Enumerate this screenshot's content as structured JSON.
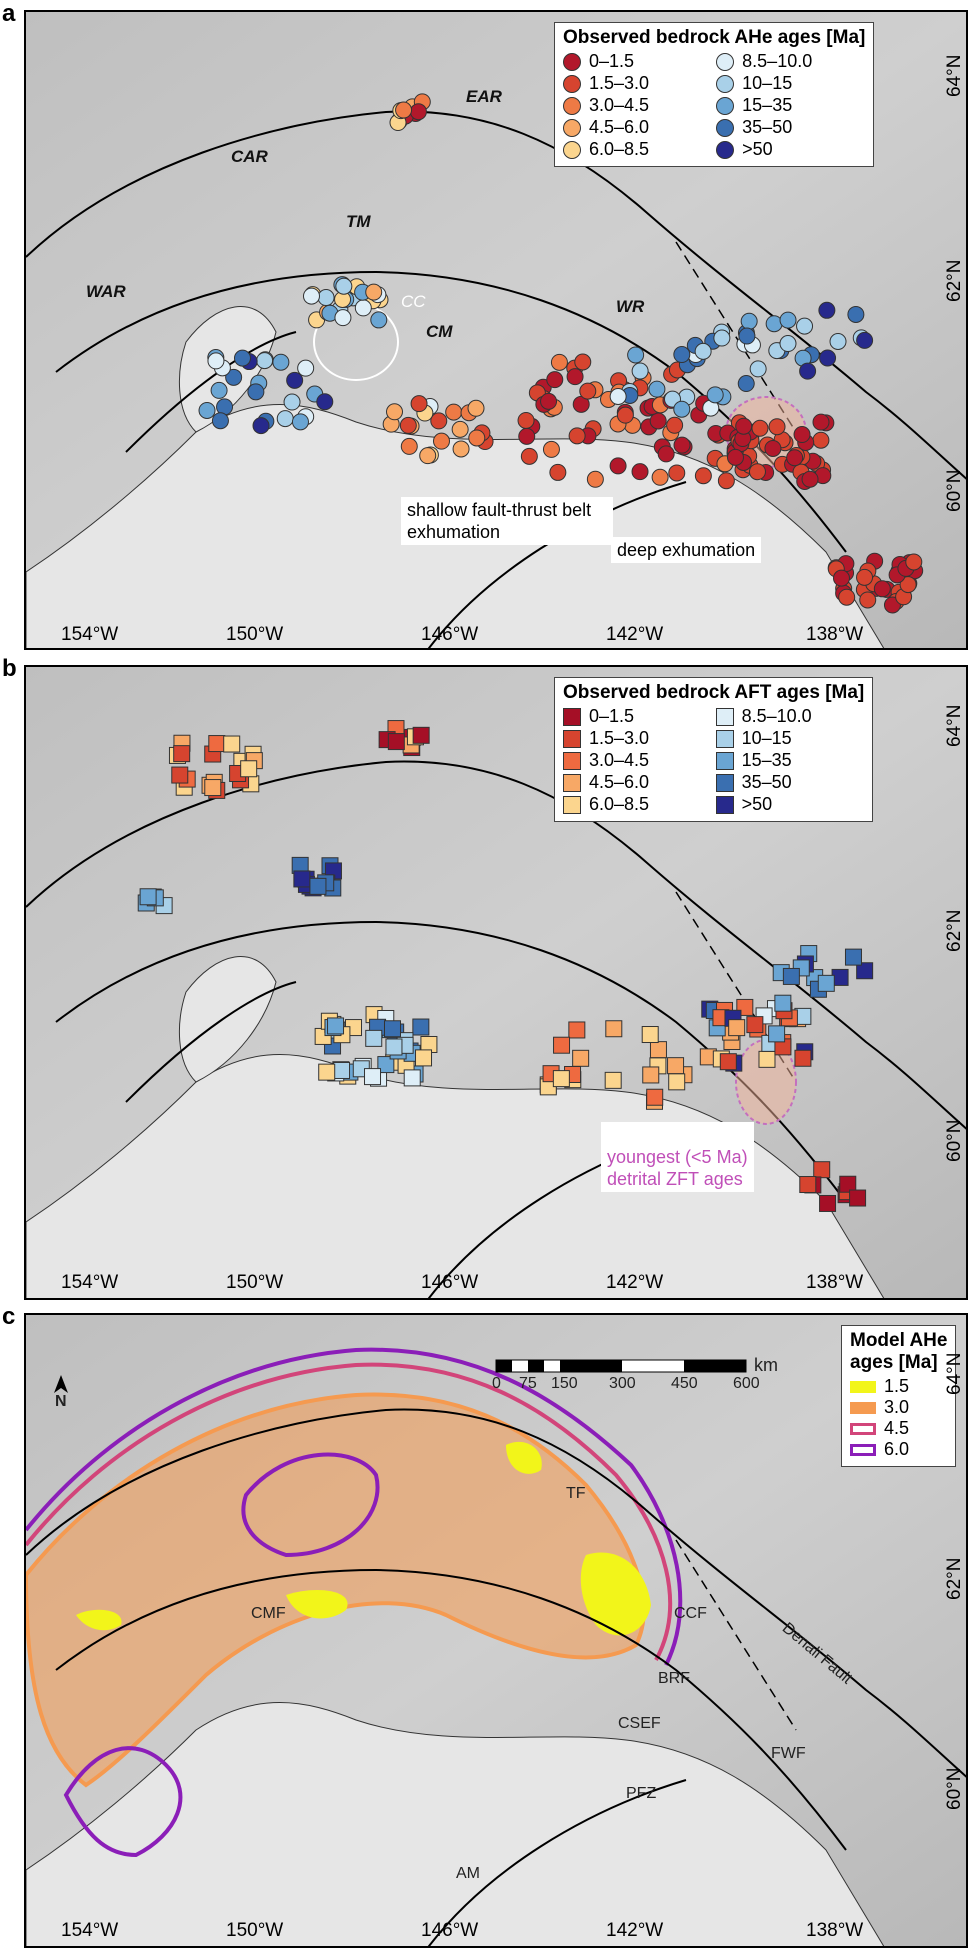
{
  "panel_a": {
    "label": "a",
    "legend_title": "Observed bedrock AHe ages [Ma]",
    "legend_items": [
      {
        "label": "0–1.5",
        "color": "#b2182b"
      },
      {
        "label": "1.5–3.0",
        "color": "#d6442f"
      },
      {
        "label": "3.0–4.5",
        "color": "#ee7a45"
      },
      {
        "label": "4.5–6.0",
        "color": "#f7a866"
      },
      {
        "label": "6.0–8.5",
        "color": "#fbd58e"
      },
      {
        "label": "8.5–10.0",
        "color": "#deeef7"
      },
      {
        "label": "10–15",
        "color": "#a9d0e8"
      },
      {
        "label": "15–35",
        "color": "#6aa5d3"
      },
      {
        "label": "35–50",
        "color": "#3a6fb0"
      },
      {
        "label": ">50",
        "color": "#27298c"
      }
    ],
    "regions": [
      "EAR",
      "CAR",
      "TM",
      "WAR",
      "CM",
      "WR",
      "CC"
    ],
    "notes": [
      "shallow fault-thrust belt exhumation",
      "deep exhumation"
    ]
  },
  "panel_b": {
    "label": "b",
    "legend_title": "Observed bedrock AFT ages [Ma]",
    "legend_items": [
      {
        "label": "0–1.5",
        "color": "#a50f26"
      },
      {
        "label": "1.5–3.0",
        "color": "#d6442f"
      },
      {
        "label": "3.0–4.5",
        "color": "#ee6a40"
      },
      {
        "label": "4.5–6.0",
        "color": "#f7a866"
      },
      {
        "label": "6.0–8.5",
        "color": "#fbd58e"
      },
      {
        "label": "8.5–10.0",
        "color": "#deeef7"
      },
      {
        "label": "10–15",
        "color": "#a9d0e8"
      },
      {
        "label": "15–35",
        "color": "#6aa5d3"
      },
      {
        "label": "35–50",
        "color": "#3a6fb0"
      },
      {
        "label": ">50",
        "color": "#27298c"
      }
    ],
    "note": "youngest (<5 Ma)\ndetrital ZFT ages"
  },
  "panel_c": {
    "label": "c",
    "legend_title": "Model AHe\nages [Ma]",
    "legend_items": [
      {
        "label": "1.5",
        "color": "#f2f51a",
        "fill": true
      },
      {
        "label": "3.0",
        "color": "#f59a50",
        "fill": true
      },
      {
        "label": "4.5",
        "color": "#d2457a",
        "fill": false
      },
      {
        "label": "6.0",
        "color": "#8b1eb8",
        "fill": false
      }
    ],
    "scale_ticks": [
      "0",
      "75",
      "150",
      "300",
      "450",
      "600"
    ],
    "scale_unit": "km",
    "north": "N",
    "faults": [
      "TF",
      "CCF",
      "Denali Fault",
      "BRF",
      "CMF",
      "CSEF",
      "FWF",
      "PFZ",
      "AM"
    ]
  },
  "axes": {
    "lon": [
      "154°W",
      "150°W",
      "146°W",
      "142°W",
      "138°W"
    ],
    "lat": [
      "64°N",
      "62°N",
      "60°N"
    ]
  }
}
